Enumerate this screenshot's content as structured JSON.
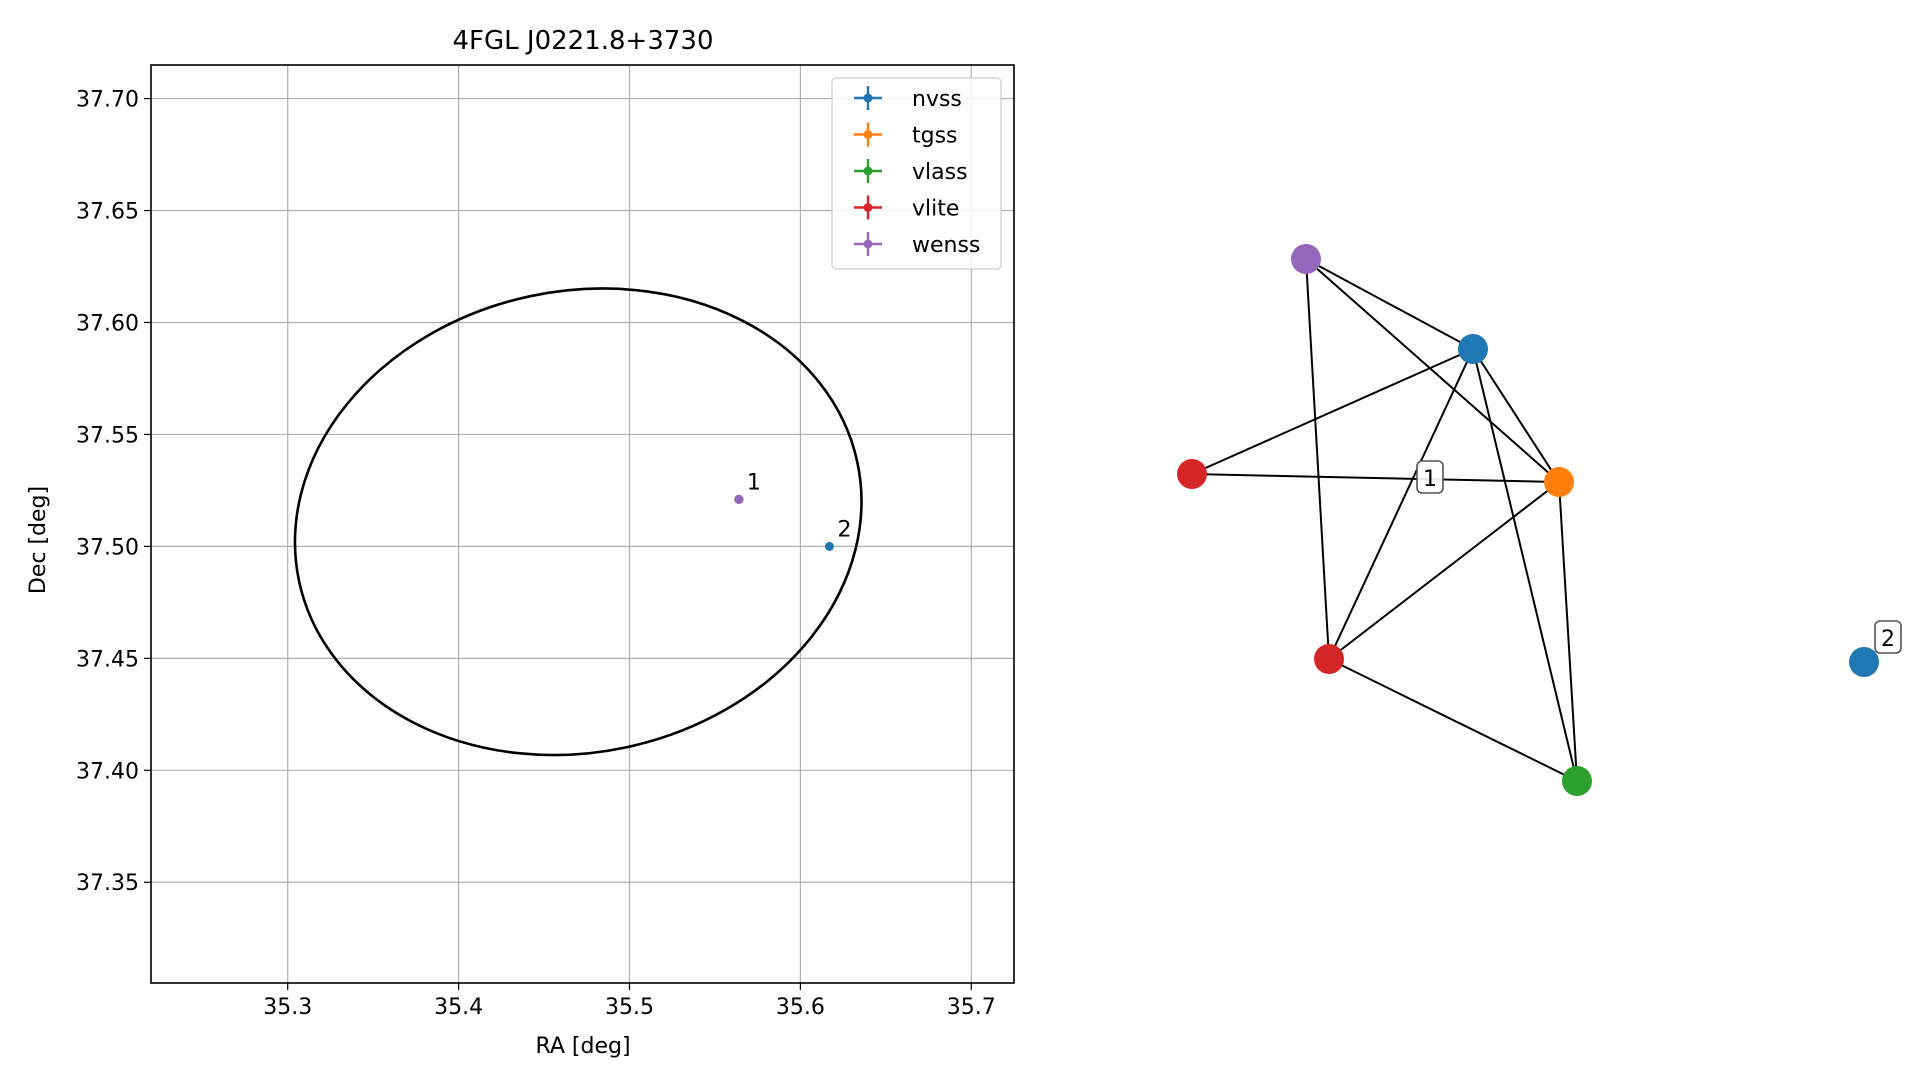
{
  "chart_data": [
    {
      "type": "scatter",
      "title": "4FGL J0221.8+3730",
      "xlabel": "RA [deg]",
      "ylabel": "Dec [deg]",
      "xlim": [
        35.22,
        35.725
      ],
      "ylim": [
        37.305,
        37.715
      ],
      "xticks": [
        "35.3",
        "35.4",
        "35.5",
        "35.6",
        "35.7"
      ],
      "yticks": [
        "37.35",
        "37.40",
        "37.45",
        "37.50",
        "37.55",
        "37.60",
        "37.65",
        "37.70"
      ],
      "grid": true,
      "legend_position": "top-right",
      "series": [
        {
          "name": "nvss",
          "color": "#1f77b4",
          "points": [
            {
              "x": 35.564,
              "y": 37.521
            },
            {
              "x": 35.617,
              "y": 37.5
            }
          ]
        },
        {
          "name": "tgss",
          "color": "#ff7f0e",
          "points": [
            {
              "x": 35.564,
              "y": 37.521
            }
          ]
        },
        {
          "name": "vlass",
          "color": "#2ca02c",
          "points": [
            {
              "x": 35.564,
              "y": 37.521
            }
          ]
        },
        {
          "name": "vlite",
          "color": "#d62728",
          "points": [
            {
              "x": 35.564,
              "y": 37.521
            }
          ]
        },
        {
          "name": "wenss",
          "color": "#9467bd",
          "points": [
            {
              "x": 35.564,
              "y": 37.521
            }
          ]
        }
      ],
      "annotations": [
        {
          "text": "1",
          "x": 35.564,
          "y": 37.521
        },
        {
          "text": "2",
          "x": 35.617,
          "y": 37.5
        }
      ],
      "ellipse": {
        "color": "#000000",
        "center": [
          35.47,
          37.511
        ],
        "semi_axes": [
          0.167,
          0.103
        ],
        "angle_deg": -12
      }
    },
    {
      "type": "graph",
      "nodes": [
        {
          "id": "wenss-1",
          "color": "#9467bd"
        },
        {
          "id": "nvss-1",
          "color": "#1f77b4"
        },
        {
          "id": "vlite-1a",
          "color": "#d62728"
        },
        {
          "id": "tgss-1",
          "color": "#ff7f0e"
        },
        {
          "id": "vlite-1b",
          "color": "#d62728"
        },
        {
          "id": "vlass-1",
          "color": "#2ca02c"
        },
        {
          "id": "nvss-2",
          "color": "#1f77b4"
        }
      ],
      "edges": [
        [
          "wenss-1",
          "nvss-1"
        ],
        [
          "wenss-1",
          "tgss-1"
        ],
        [
          "wenss-1",
          "vlite-1b"
        ],
        [
          "nvss-1",
          "vlite-1a"
        ],
        [
          "nvss-1",
          "tgss-1"
        ],
        [
          "nvss-1",
          "vlite-1b"
        ],
        [
          "nvss-1",
          "vlass-1"
        ],
        [
          "vlite-1a",
          "tgss-1"
        ],
        [
          "tgss-1",
          "vlite-1b"
        ],
        [
          "tgss-1",
          "vlass-1"
        ],
        [
          "vlite-1b",
          "vlass-1"
        ]
      ],
      "labels": [
        {
          "text": "1"
        },
        {
          "text": "2"
        }
      ]
    }
  ]
}
